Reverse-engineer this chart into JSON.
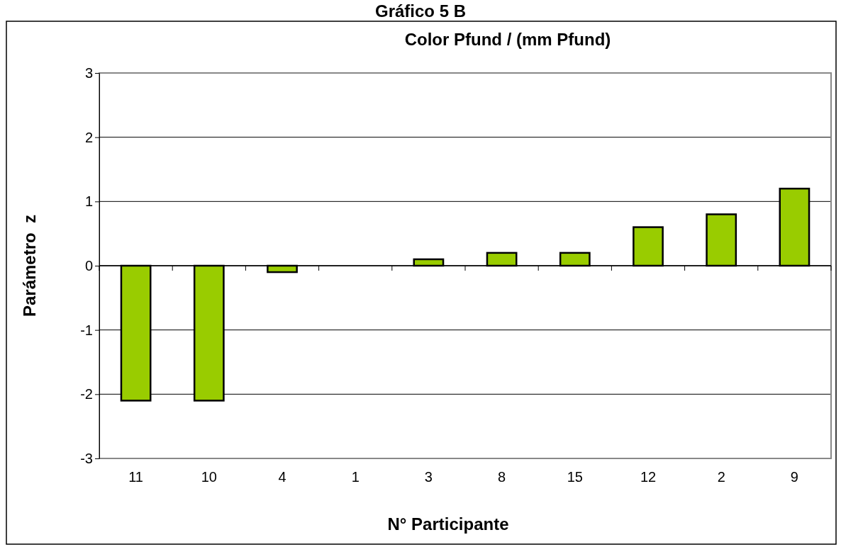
{
  "chart_data": {
    "type": "bar",
    "title": "Gráfico 5 B",
    "subtitle": "Color Pfund / (mm Pfund)",
    "xlabel": "N° Participante",
    "ylabel": "Parámetro  z",
    "categories": [
      "11",
      "10",
      "4",
      "1",
      "3",
      "8",
      "15",
      "12",
      "2",
      "9"
    ],
    "values": [
      -2.1,
      -2.1,
      -0.1,
      0,
      0.1,
      0.2,
      0.2,
      0.6,
      0.8,
      1.2
    ],
    "color": "#99cc00",
    "ylim": [
      -3,
      3
    ],
    "yticks": [
      -3,
      -2,
      -1,
      0,
      1,
      2,
      3
    ],
    "grid": "y"
  }
}
